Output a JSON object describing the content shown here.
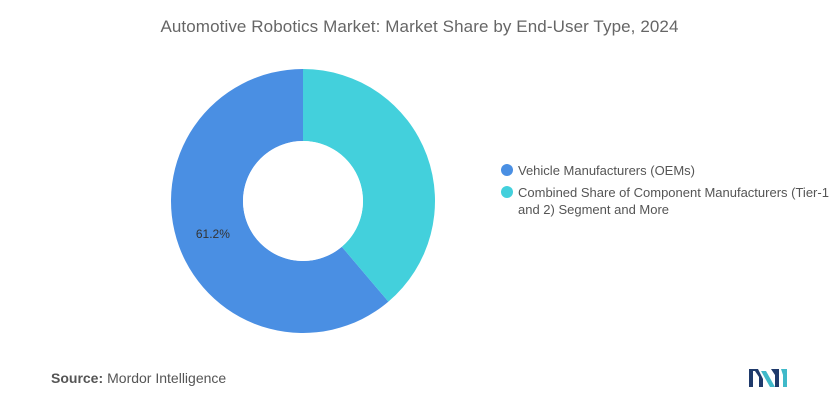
{
  "title": "Automotive Robotics Market: Market Share by End-User Type, 2024",
  "chart_data": {
    "type": "pie",
    "variant": "donut",
    "title": "Automotive Robotics Market: Market Share by End-User Type, 2024",
    "slices": [
      {
        "label": "Vehicle Manufacturers (OEMs)",
        "value": 61.2,
        "color": "#4a8fe3",
        "data_label": "61.2%"
      },
      {
        "label": "Combined Share of Component Manufacturers (Tier-1 and 2) Segment and More",
        "value": 38.8,
        "color": "#43d0dc",
        "data_label": ""
      }
    ],
    "legend_position": "right"
  },
  "source": {
    "label": "Source:",
    "value": "Mordor Intelligence"
  },
  "logo": {
    "icon": "mordor-intelligence-logo",
    "color_dark": "#1f3a6b",
    "color_light": "#3fb9c9"
  }
}
